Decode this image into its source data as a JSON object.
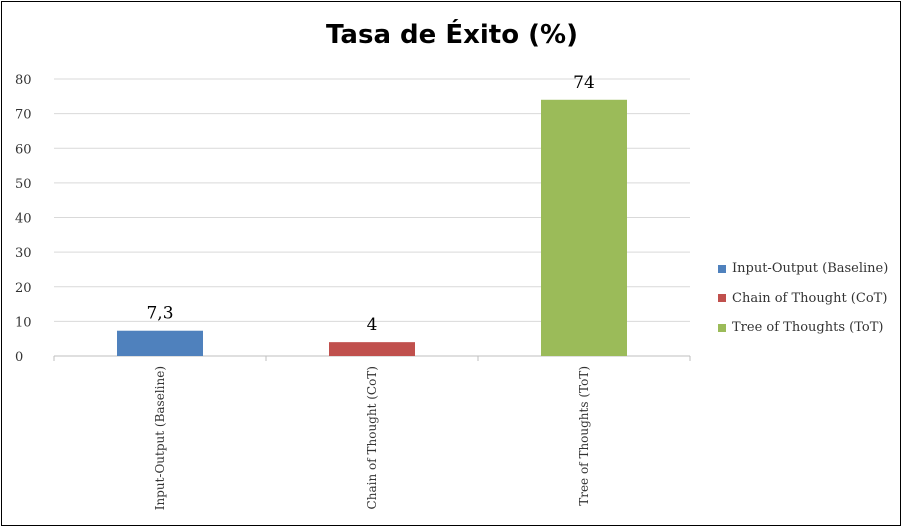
{
  "chart_data": {
    "type": "bar",
    "title": "Tasa de Éxito (%)",
    "categories": [
      "Input-Output (Baseline)",
      "Chain of Thought (CoT)",
      "Tree of Thoughts (ToT)"
    ],
    "values": [
      7.3,
      4,
      74
    ],
    "data_labels": [
      "7,3",
      "4",
      "74"
    ],
    "colors": [
      "#4f81bd",
      "#c0504d",
      "#9bbb59"
    ],
    "ylim": [
      0,
      80
    ],
    "yticks": [
      "0",
      "10",
      "20",
      "30",
      "40",
      "50",
      "60",
      "70",
      "80"
    ],
    "grid": true,
    "legend_position": "right"
  }
}
